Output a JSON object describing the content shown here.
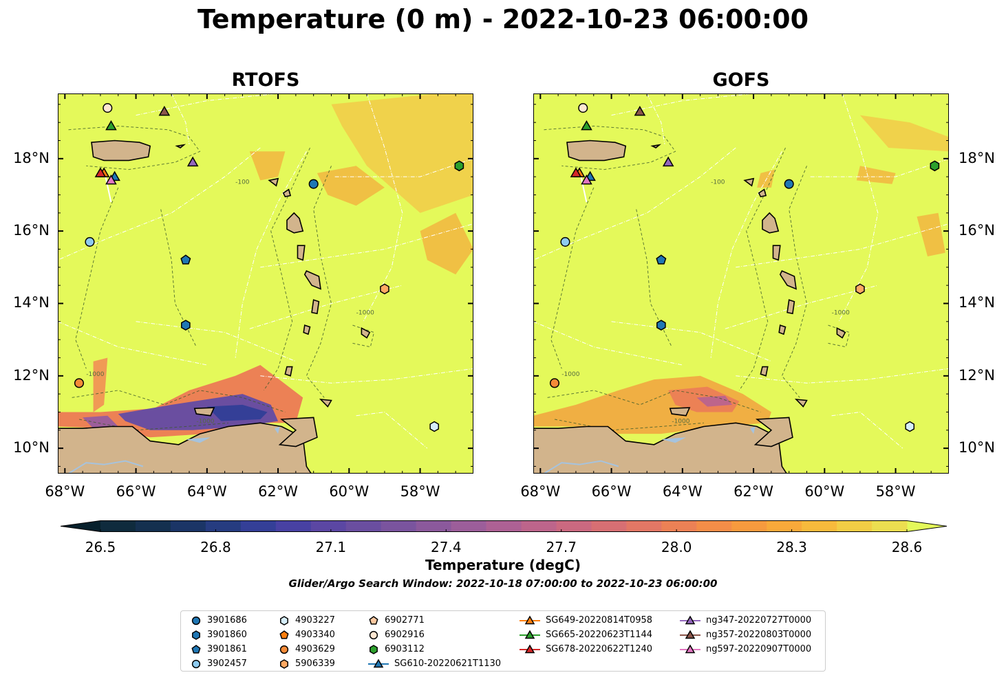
{
  "figure": {
    "title": "Temperature (0 m) - 2022-10-23 06:00:00",
    "search_window": "Glider/Argo Search Window: 2022-10-18 07:00:00 to 2022-10-23 06:00:00"
  },
  "chart_data": [
    {
      "type": "heatmap",
      "title": "RTOFS",
      "xlim": [
        -68.2,
        -56.5
      ],
      "ylim": [
        9.3,
        19.8
      ],
      "x_ticks": [
        "68°W",
        "66°W",
        "64°W",
        "62°W",
        "60°W",
        "58°W"
      ],
      "y_ticks": [
        "10°N",
        "12°N",
        "14°N",
        "16°N",
        "18°N"
      ],
      "y_tick_side": "left",
      "bathymetry_contour_labels": [
        "-1000",
        "-1000",
        "-1000",
        "-100"
      ]
    },
    {
      "type": "heatmap",
      "title": "GOFS",
      "xlim": [
        -68.2,
        -56.5
      ],
      "ylim": [
        9.3,
        19.8
      ],
      "x_ticks": [
        "68°W",
        "66°W",
        "64°W",
        "62°W",
        "60°W",
        "58°W"
      ],
      "y_ticks": [
        "10°N",
        "12°N",
        "14°N",
        "16°N",
        "18°N"
      ],
      "y_tick_side": "right",
      "bathymetry_contour_labels": [
        "-1000",
        "-1000",
        "-1000",
        "-100"
      ]
    }
  ],
  "colorbar": {
    "label": "Temperature (degC)",
    "ticks": [
      "26.5",
      "26.8",
      "27.1",
      "27.4",
      "27.7",
      "28.0",
      "28.3",
      "28.6"
    ],
    "range": [
      26.5,
      28.6
    ],
    "levels": 23,
    "colors": [
      "#0f2b3d",
      "#14304f",
      "#1b3566",
      "#263c80",
      "#343f97",
      "#4841a3",
      "#5b47a3",
      "#6a4ea0",
      "#7a549e",
      "#8b599c",
      "#9c5e9a",
      "#ad6194",
      "#bd658b",
      "#cb6980",
      "#d76f73",
      "#e27765",
      "#ec8155",
      "#f38d48",
      "#f79a3e",
      "#f8a93a",
      "#f7ba3c",
      "#f2cd45",
      "#ecde50"
    ],
    "extend_low": "#07202c",
    "extend_high": "#e4f95a"
  },
  "map_colors": {
    "ocean": "#e4f95a",
    "land": "#d2b48c",
    "lake": "#a6c3de"
  },
  "legend": {
    "items": [
      {
        "label": "3901686",
        "marker": "circle",
        "color": "#1f77b4",
        "line": false,
        "lon": -61.0,
        "lat": 17.3
      },
      {
        "label": "3901860",
        "marker": "hexagon",
        "color": "#1f77b4",
        "line": false,
        "lon": -64.6,
        "lat": 13.4
      },
      {
        "label": "3901861",
        "marker": "pentagon",
        "color": "#1f77b4",
        "line": false,
        "lon": -64.6,
        "lat": 15.2
      },
      {
        "label": "3902457",
        "marker": "circle",
        "color": "#8ecbf0",
        "line": false,
        "lon": -67.3,
        "lat": 15.7
      },
      {
        "label": "4903227",
        "marker": "hexagon",
        "color": "#d6eefa",
        "line": false,
        "lon": -57.6,
        "lat": 10.6
      },
      {
        "label": "4903340",
        "marker": "pentagon",
        "color": "#ff7f0e",
        "line": false,
        "lon": null,
        "lat": null
      },
      {
        "label": "4903629",
        "marker": "circle",
        "color": "#f58b38",
        "line": false,
        "lon": -67.6,
        "lat": 11.8
      },
      {
        "label": "5906339",
        "marker": "hexagon",
        "color": "#ffa963",
        "line": false,
        "lon": -59.0,
        "lat": 14.4
      },
      {
        "label": "6902771",
        "marker": "pentagon",
        "color": "#ffc9a0",
        "line": false,
        "lon": null,
        "lat": null
      },
      {
        "label": "6902916",
        "marker": "circle",
        "color": "#ffe7d2",
        "line": false,
        "lon": -66.8,
        "lat": 19.4
      },
      {
        "label": "6903112",
        "marker": "hexagon",
        "color": "#2ca02c",
        "line": false,
        "lon": -56.9,
        "lat": 17.8
      },
      {
        "label": "SG610-20220621T1130",
        "marker": "triangle",
        "color": "#1f77b4",
        "line": true,
        "lon": -66.6,
        "lat": 17.5
      },
      {
        "label": "SG649-20220814T0958",
        "marker": "triangle",
        "color": "#ff7f0e",
        "line": true,
        "lon": -66.9,
        "lat": 17.6
      },
      {
        "label": "SG665-20220623T1144",
        "marker": "triangle",
        "color": "#2ca02c",
        "line": true,
        "lon": -66.7,
        "lat": 18.9
      },
      {
        "label": "SG678-20220622T1240",
        "marker": "triangle",
        "color": "#d62728",
        "line": true,
        "lon": -67.0,
        "lat": 17.6
      },
      {
        "label": "ng347-20220727T0000",
        "marker": "triangle",
        "color": "#9467bd",
        "line": true,
        "lon": -64.4,
        "lat": 17.9
      },
      {
        "label": "ng357-20220803T0000",
        "marker": "triangle",
        "color": "#8c564b",
        "line": true,
        "lon": -65.2,
        "lat": 19.3
      },
      {
        "label": "ng597-20220907T0000",
        "marker": "triangle",
        "color": "#e377c2",
        "line": true,
        "lon": -66.7,
        "lat": 17.4
      }
    ]
  }
}
